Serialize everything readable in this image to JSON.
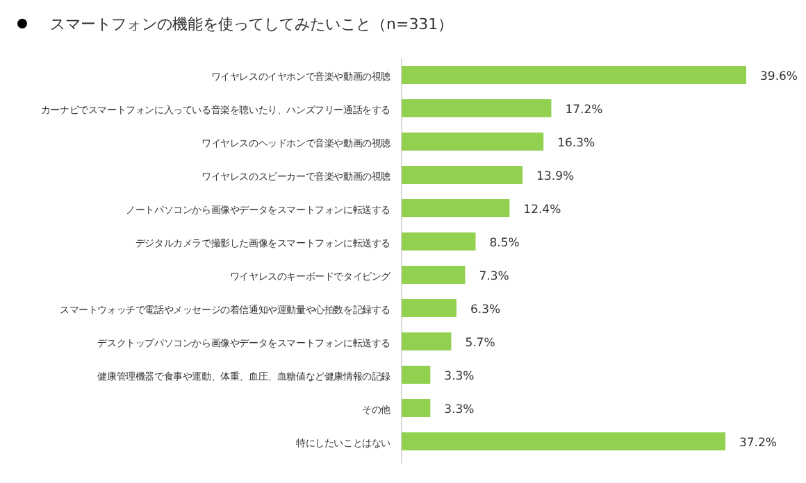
{
  "chart_data": {
    "type": "bar",
    "orientation": "horizontal",
    "title": "スマートフォンの機能を使ってしてみたいこと（n=331）",
    "categories": [
      "ワイヤレスのイヤホンで音楽や動画の視聴",
      "カーナビでスマートフォンに入っている音楽を聴いたり、ハンズフリー通話をする",
      "ワイヤレスのヘッドホンで音楽や動画の視聴",
      "ワイヤレスのスピーカーで音楽や動画の視聴",
      "ノートパソコンから画像やデータをスマートフォンに転送する",
      "デジタルカメラで撮影した画像をスマートフォンに転送する",
      "ワイヤレスのキーボードでタイピング",
      "スマートウォッチで電話やメッセージの着信通知や運動量や心拍数を記録する",
      "デスクトップパソコンから画像やデータをスマートフォンに転送する",
      "健康管理機器で食事や運動、体重、血圧、血糖値など健康情報の記録",
      "その他",
      "特にしたいことはない"
    ],
    "values": [
      39.6,
      17.2,
      16.3,
      13.9,
      12.4,
      8.5,
      7.3,
      6.3,
      5.7,
      3.3,
      3.3,
      37.2
    ],
    "value_labels": [
      "39.6%",
      "17.2%",
      "16.3%",
      "13.9%",
      "12.4%",
      "8.5%",
      "7.3%",
      "6.3%",
      "5.7%",
      "3.3%",
      "3.3%",
      "37.2%"
    ],
    "color": "#92d050"
  }
}
